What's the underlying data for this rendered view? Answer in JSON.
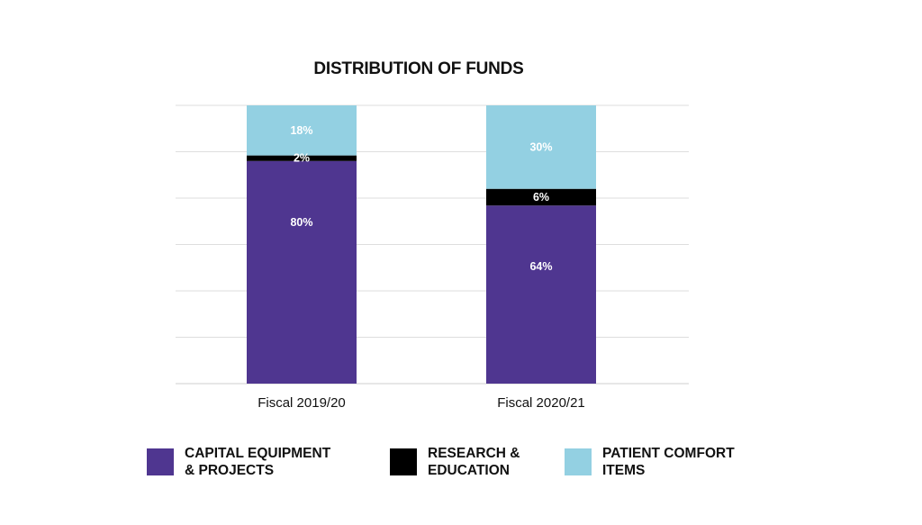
{
  "chart_data": {
    "type": "bar",
    "stacked": true,
    "title": "DISTRIBUTION OF FUNDS",
    "xlabel": "",
    "ylabel": "",
    "ylim": [
      0,
      100
    ],
    "grid": true,
    "legend_position": "bottom",
    "categories": [
      "Fiscal 2019/20",
      "Fiscal 2020/21"
    ],
    "series": [
      {
        "name": "CAPITAL EQUIPMENT\n& PROJECTS",
        "color": "#4f3690",
        "values": [
          80,
          64
        ],
        "labels": [
          "80%",
          "64%"
        ]
      },
      {
        "name": "RESEARCH &\nEDUCATION",
        "color": "#000000",
        "values": [
          2,
          6
        ],
        "labels": [
          "2%",
          "6%"
        ]
      },
      {
        "name": "PATIENT COMFORT\nITEMS",
        "color": "#93d0e2",
        "values": [
          18,
          30
        ],
        "labels": [
          "18%",
          "30%"
        ]
      }
    ]
  }
}
